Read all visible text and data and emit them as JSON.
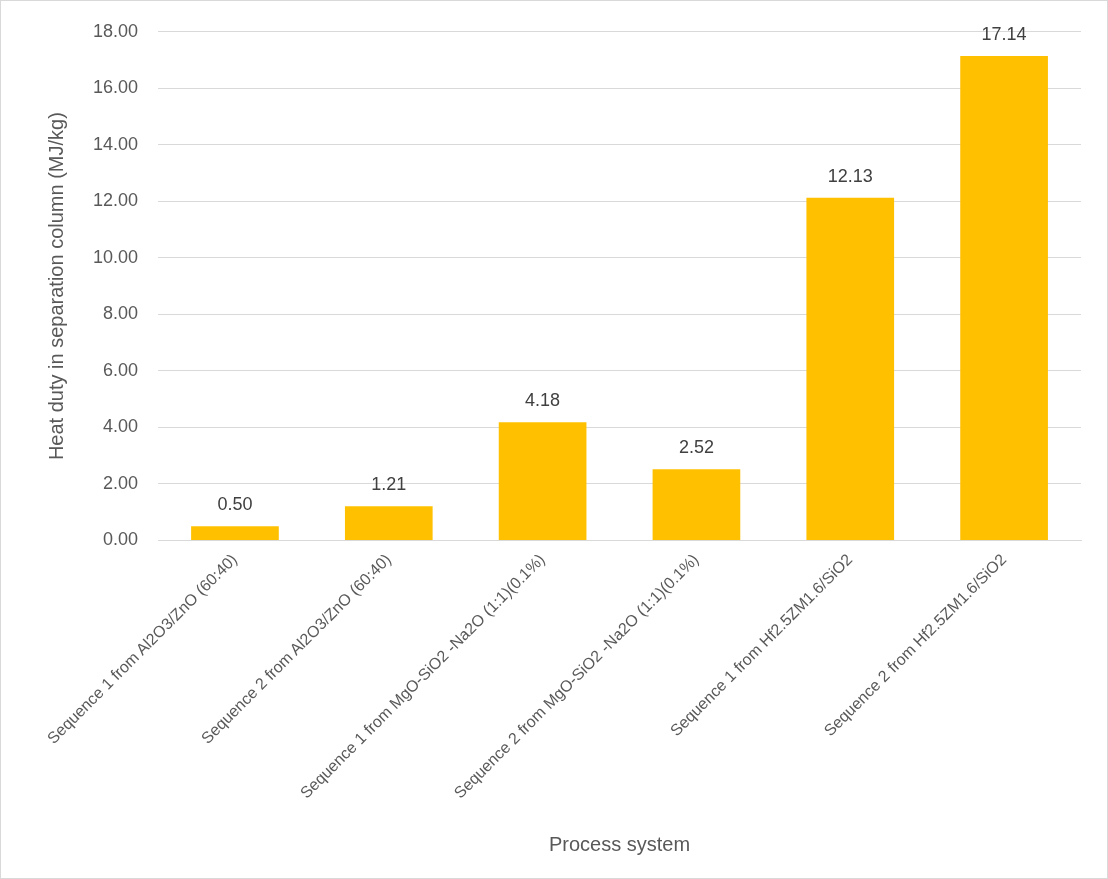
{
  "chart_data": {
    "type": "bar",
    "xlabel": "Process system",
    "ylabel": "Heat duty in separation column (MJ/kg)",
    "categories": [
      "Sequence 1 from Al2O3/ZnO (60:40)",
      "Sequence 2 from Al2O3/ZnO (60:40)",
      "Sequence 1 from MgO-SiO2 -Na2O (1:1)(0.1%)",
      "Sequence 2 from MgO-SiO2 -Na2O (1:1)(0.1%)",
      "Sequence 1 from Hf2.5ZM1.6/SiO2",
      "Sequence 2 from Hf2.5ZM1.6/SiO2"
    ],
    "values": [
      0.5,
      1.21,
      4.18,
      2.52,
      12.13,
      17.14
    ],
    "value_labels": [
      "0.50",
      "1.21",
      "4.18",
      "2.52",
      "12.13",
      "17.14"
    ],
    "color": "#ffc000",
    "ylim": [
      0,
      18
    ],
    "yticks": [
      {
        "value": 0,
        "label": "0.00"
      },
      {
        "value": 2,
        "label": "2.00"
      },
      {
        "value": 4,
        "label": "4.00"
      },
      {
        "value": 6,
        "label": "6.00"
      },
      {
        "value": 8,
        "label": "8.00"
      },
      {
        "value": 10,
        "label": "10.00"
      },
      {
        "value": 12,
        "label": "12.00"
      },
      {
        "value": 14,
        "label": "14.00"
      },
      {
        "value": 16,
        "label": "16.00"
      },
      {
        "value": 18,
        "label": "18.00"
      }
    ],
    "grid": "y",
    "legend": false
  }
}
